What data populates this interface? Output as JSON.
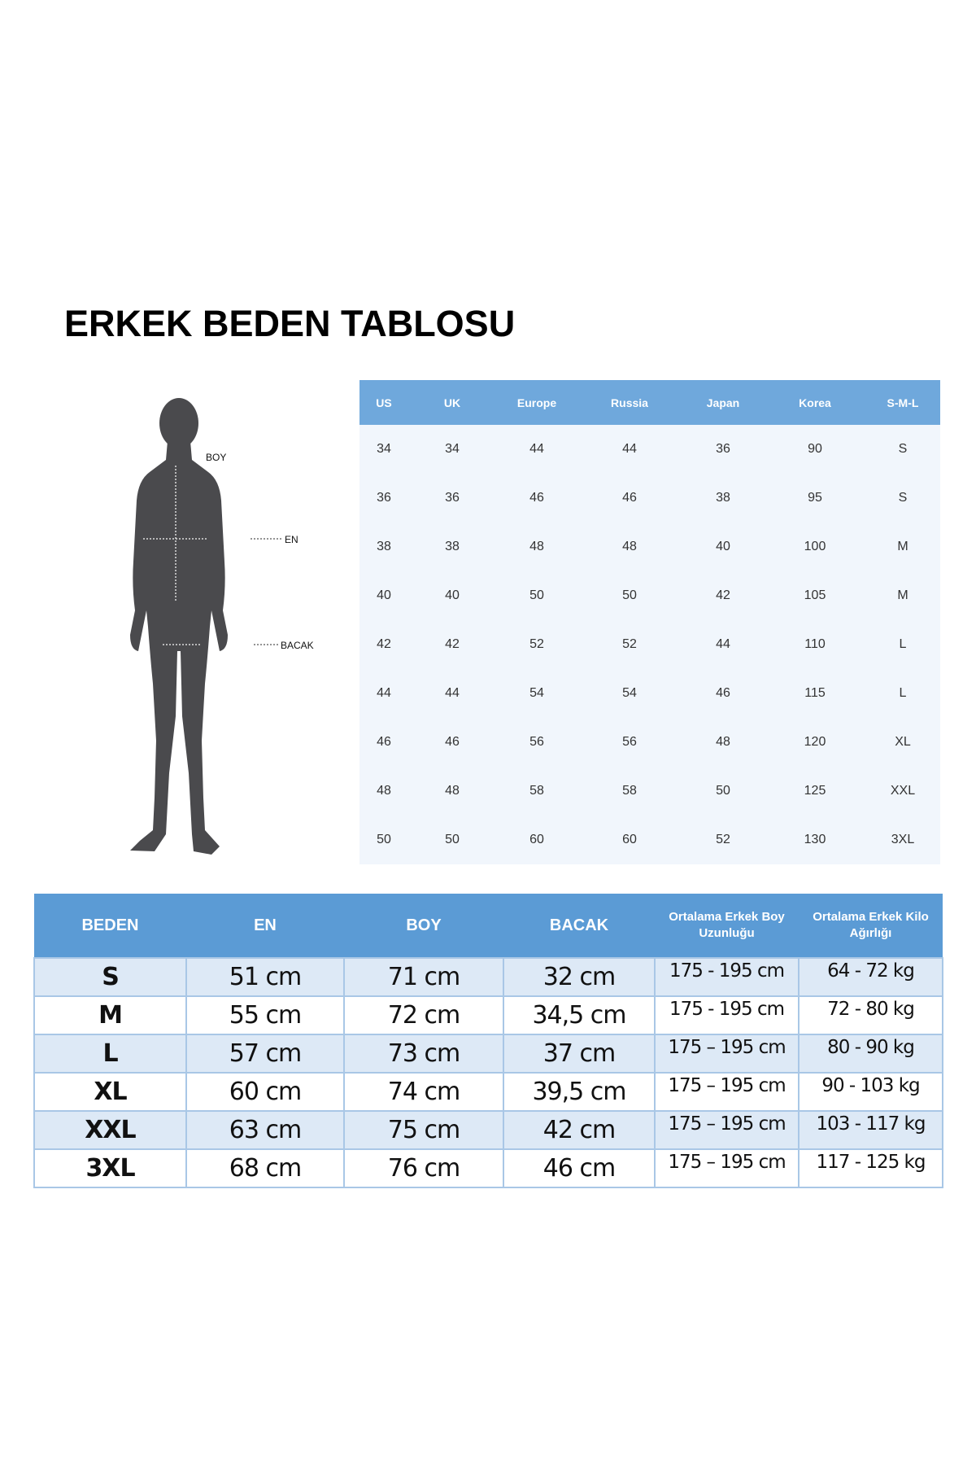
{
  "title": "ERKEK BEDEN TABLOSU",
  "figure": {
    "labels": {
      "boy": "BOY",
      "en": "EN",
      "bacak": "BACAK"
    }
  },
  "conversion_table": {
    "headers": [
      "US",
      "UK",
      "Europe",
      "Russia",
      "Japan",
      "Korea",
      "S-M-L"
    ],
    "rows": [
      [
        "34",
        "34",
        "44",
        "44",
        "36",
        "90",
        "S"
      ],
      [
        "36",
        "36",
        "46",
        "46",
        "38",
        "95",
        "S"
      ],
      [
        "38",
        "38",
        "48",
        "48",
        "40",
        "100",
        "M"
      ],
      [
        "40",
        "40",
        "50",
        "50",
        "42",
        "105",
        "M"
      ],
      [
        "42",
        "42",
        "52",
        "52",
        "44",
        "110",
        "L"
      ],
      [
        "44",
        "44",
        "54",
        "54",
        "46",
        "115",
        "L"
      ],
      [
        "46",
        "46",
        "56",
        "56",
        "48",
        "120",
        "XL"
      ],
      [
        "48",
        "48",
        "58",
        "58",
        "50",
        "125",
        "XXL"
      ],
      [
        "50",
        "50",
        "60",
        "60",
        "52",
        "130",
        "3XL"
      ]
    ]
  },
  "size_table": {
    "headers": [
      "BEDEN",
      "EN",
      "BOY",
      "BACAK",
      "Ortalama Erkek Boy Uzunluğu",
      "Ortalama Erkek Kilo Ağırlığı"
    ],
    "rows": [
      [
        "S",
        "51 cm",
        "71 cm",
        "32 cm",
        "175 - 195 cm",
        "64 - 72 kg"
      ],
      [
        "M",
        "55 cm",
        "72 cm",
        "34,5 cm",
        "175 - 195 cm",
        "72 - 80 kg"
      ],
      [
        "L",
        "57 cm",
        "73 cm",
        "37 cm",
        "175 – 195 cm",
        "80 - 90 kg"
      ],
      [
        "XL",
        "60 cm",
        "74 cm",
        "39,5 cm",
        "175 – 195 cm",
        "90 - 103 kg"
      ],
      [
        "XXL",
        "63 cm",
        "75 cm",
        "42 cm",
        "175 – 195 cm",
        "103 - 117 kg"
      ],
      [
        "3XL",
        "68 cm",
        "76 cm",
        "46 cm",
        "175 – 195 cm",
        "117 - 125 kg"
      ]
    ]
  },
  "colors": {
    "header_blue": "#5b9bd5",
    "light_header_blue": "#6fa8dc",
    "row_alt": "#dde9f6",
    "silhouette": "#4a4a4d"
  }
}
